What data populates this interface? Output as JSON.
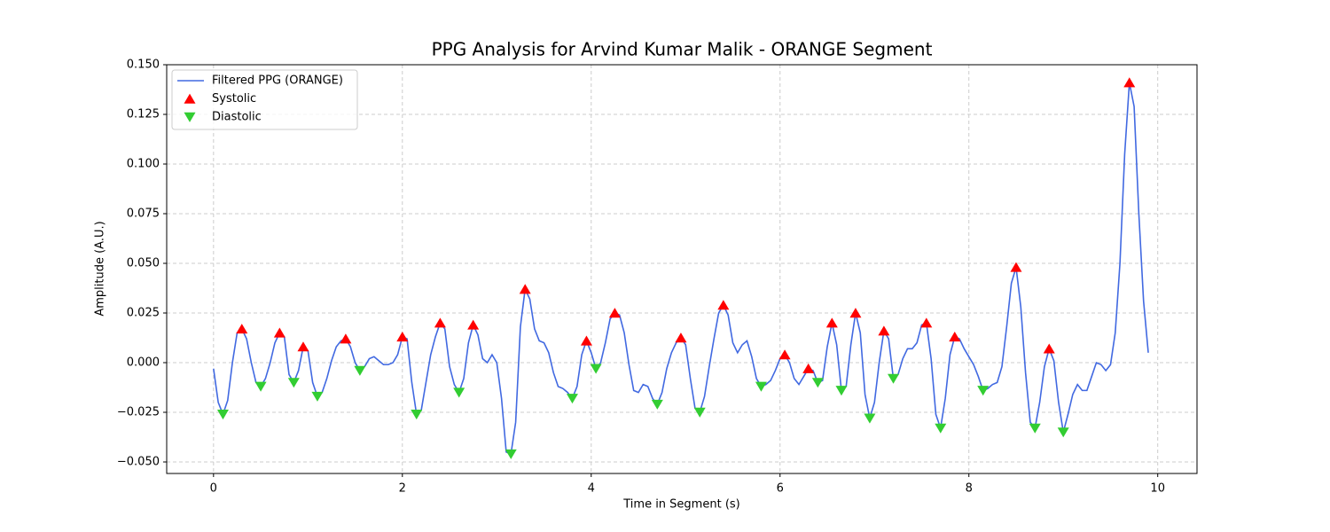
{
  "chart_data": {
    "type": "line",
    "title": "PPG Analysis for Arvind Kumar Malik - ORANGE Segment",
    "xlabel": "Time in Segment (s)",
    "ylabel": "Amplitude (A.U.)",
    "xlim": [
      -0.496,
      10.416
    ],
    "ylim": [
      -0.0558,
      0.15
    ],
    "xticks": [
      0,
      2,
      4,
      6,
      8,
      10
    ],
    "yticks": [
      {
        "value": -0.05,
        "label": "−0.050"
      },
      {
        "value": -0.025,
        "label": "−0.025"
      },
      {
        "value": 0,
        "label": "0.000"
      },
      {
        "value": 0.025,
        "label": "0.025"
      },
      {
        "value": 0.05,
        "label": "0.050"
      },
      {
        "value": 0.075,
        "label": "0.075"
      },
      {
        "value": 0.1,
        "label": "0.100"
      },
      {
        "value": 0.125,
        "label": "0.125"
      },
      {
        "value": 0.15,
        "label": "0.150"
      }
    ],
    "grid": true,
    "legend": "upper left",
    "series": [
      {
        "name": "Filtered PPG (ORANGE)",
        "type": "line",
        "color": "#4169e1",
        "x": [
          0,
          0.05,
          0.1,
          0.15,
          0.2,
          0.25,
          0.3,
          0.35,
          0.4,
          0.45,
          0.5,
          0.55,
          0.6,
          0.65,
          0.7,
          0.75,
          0.8,
          0.85,
          0.9,
          0.95,
          1,
          1.05,
          1.1,
          1.15,
          1.2,
          1.25,
          1.3,
          1.35,
          1.4,
          1.45,
          1.5,
          1.55,
          1.6,
          1.65,
          1.7,
          1.75,
          1.8,
          1.85,
          1.9,
          1.95,
          2,
          2.05,
          2.1,
          2.15,
          2.2,
          2.25,
          2.3,
          2.35,
          2.4,
          2.45,
          2.5,
          2.55,
          2.6,
          2.65,
          2.7,
          2.75,
          2.8,
          2.85,
          2.9,
          2.95,
          3,
          3.05,
          3.1,
          3.15,
          3.2,
          3.25,
          3.3,
          3.35,
          3.4,
          3.45,
          3.5,
          3.55,
          3.6,
          3.65,
          3.7,
          3.75,
          3.8,
          3.85,
          3.9,
          3.95,
          4,
          4.05,
          4.1,
          4.15,
          4.2,
          4.25,
          4.3,
          4.35,
          4.4,
          4.45,
          4.5,
          4.55,
          4.6,
          4.65,
          4.7,
          4.75,
          4.8,
          4.85,
          4.9,
          4.95,
          5,
          5.05,
          5.1,
          5.15,
          5.2,
          5.25,
          5.3,
          5.35,
          5.4,
          5.45,
          5.5,
          5.55,
          5.6,
          5.65,
          5.7,
          5.75,
          5.8,
          5.85,
          5.9,
          5.95,
          6,
          6.05,
          6.1,
          6.15,
          6.2,
          6.25,
          6.3,
          6.35,
          6.4,
          6.45,
          6.5,
          6.55,
          6.6,
          6.65,
          6.7,
          6.75,
          6.8,
          6.85,
          6.9,
          6.95,
          7,
          7.05,
          7.1,
          7.15,
          7.2,
          7.25,
          7.3,
          7.35,
          7.4,
          7.45,
          7.5,
          7.55,
          7.6,
          7.65,
          7.7,
          7.75,
          7.8,
          7.85,
          7.9,
          7.95,
          8,
          8.05,
          8.1,
          8.15,
          8.2,
          8.25,
          8.3,
          8.35,
          8.4,
          8.45,
          8.5,
          8.55,
          8.6,
          8.65,
          8.7,
          8.75,
          8.8,
          8.85,
          8.9,
          8.95,
          9,
          9.05,
          9.1,
          9.15,
          9.2,
          9.25,
          9.3,
          9.35,
          9.4,
          9.45,
          9.5,
          9.55,
          9.6,
          9.65,
          9.7,
          9.75,
          9.8,
          9.85,
          9.9
        ],
        "values": [
          -0.003,
          -0.02,
          -0.026,
          -0.019,
          0,
          0.015,
          0.017,
          0.012,
          0,
          -0.01,
          -0.012,
          -0.008,
          0,
          0.01,
          0.015,
          0.013,
          -0.006,
          -0.01,
          -0.004,
          0.008,
          0.006,
          -0.01,
          -0.017,
          -0.015,
          -0.008,
          0.001,
          0.008,
          0.011,
          0.012,
          0.008,
          0,
          -0.004,
          -0.002,
          0.002,
          0.003,
          0.001,
          -0.001,
          -0.001,
          0,
          0.004,
          0.013,
          0.012,
          -0.01,
          -0.026,
          -0.024,
          -0.01,
          0.004,
          0.013,
          0.02,
          0.017,
          -0.002,
          -0.011,
          -0.015,
          -0.008,
          0.01,
          0.019,
          0.014,
          0.002,
          0,
          0.004,
          0,
          -0.018,
          -0.045,
          -0.046,
          -0.03,
          0.018,
          0.037,
          0.032,
          0.017,
          0.011,
          0.01,
          0.005,
          -0.005,
          -0.012,
          -0.013,
          -0.015,
          -0.018,
          -0.012,
          0.004,
          0.011,
          0.005,
          -0.003,
          0,
          0.01,
          0.022,
          0.025,
          0.024,
          0.015,
          -0.001,
          -0.014,
          -0.015,
          -0.011,
          -0.012,
          -0.018,
          -0.021,
          -0.015,
          -0.003,
          0.005,
          0.01,
          0.0125,
          0.009,
          -0.008,
          -0.023,
          -0.025,
          -0.017,
          -0.002,
          0.012,
          0.025,
          0.029,
          0.024,
          0.01,
          0.005,
          0.009,
          0.011,
          0.003,
          -0.008,
          -0.012,
          -0.011,
          -0.009,
          -0.004,
          0.002,
          0.004,
          0,
          -0.008,
          -0.011,
          -0.007,
          -0.003,
          -0.004,
          -0.01,
          -0.009,
          0.008,
          0.02,
          0.009,
          -0.014,
          -0.012,
          0.009,
          0.025,
          0.015,
          -0.016,
          -0.028,
          -0.02,
          0,
          0.016,
          0.012,
          -0.008,
          -0.006,
          0.002,
          0.007,
          0.007,
          0.01,
          0.019,
          0.02,
          0.002,
          -0.026,
          -0.033,
          -0.018,
          0.004,
          0.013,
          0.012,
          0.007,
          0.003,
          -0.001,
          -0.007,
          -0.014,
          -0.013,
          -0.011,
          -0.01,
          -0.002,
          0.018,
          0.04,
          0.048,
          0.028,
          -0.005,
          -0.03,
          -0.033,
          -0.02,
          -0.002,
          0.007,
          0.001,
          -0.02,
          -0.035,
          -0.026,
          -0.016,
          -0.011,
          -0.014,
          -0.014,
          -0.007,
          0,
          -0.001,
          -0.004,
          -0.001,
          0.015,
          0.05,
          0.105,
          0.141,
          0.129,
          0.075,
          0.031,
          0.005
        ]
      },
      {
        "name": "Systolic",
        "type": "scatter",
        "marker": "up",
        "color": "#ff0000",
        "x": [
          0.3,
          0.7,
          0.95,
          1.4,
          2.0,
          2.4,
          2.75,
          3.3,
          3.95,
          4.25,
          4.95,
          5.4,
          6.05,
          6.3,
          6.55,
          6.8,
          7.1,
          7.55,
          7.85,
          8.5,
          8.85,
          9.7
        ],
        "values": [
          0.017,
          0.015,
          0.008,
          0.012,
          0.013,
          0.02,
          0.019,
          0.037,
          0.011,
          0.025,
          0.0125,
          0.029,
          0.004,
          -0.003,
          0.02,
          0.025,
          0.016,
          0.02,
          0.013,
          0.048,
          0.007,
          0.141
        ]
      },
      {
        "name": "Diastolic",
        "type": "scatter",
        "marker": "down",
        "color": "#32cd32",
        "x": [
          0.1,
          0.5,
          0.85,
          1.1,
          1.55,
          2.15,
          2.6,
          3.15,
          3.8,
          4.05,
          4.7,
          5.15,
          5.8,
          6.4,
          6.65,
          6.95,
          7.2,
          7.7,
          8.15,
          8.7,
          9.0
        ],
        "values": [
          -0.026,
          -0.012,
          -0.01,
          -0.017,
          -0.004,
          -0.026,
          -0.015,
          -0.046,
          -0.018,
          -0.003,
          -0.021,
          -0.025,
          -0.012,
          -0.01,
          -0.014,
          -0.028,
          -0.008,
          -0.033,
          -0.014,
          -0.033,
          -0.035
        ]
      }
    ]
  }
}
